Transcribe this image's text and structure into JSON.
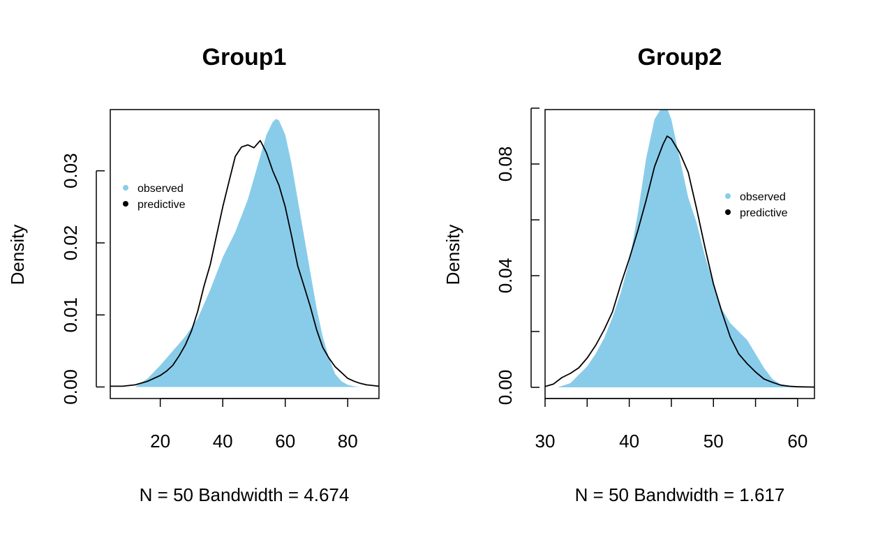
{
  "colors": {
    "observed": "#89CCEA",
    "predictive": "#000000"
  },
  "chart_data": [
    {
      "type": "area",
      "title": "Group1",
      "ylabel": "Density",
      "xlabel": "N = 50   Bandwidth = 4.674",
      "xlim": [
        4,
        90
      ],
      "ylim": [
        -0.0016,
        0.0385
      ],
      "xticks": [
        20,
        40,
        60,
        80
      ],
      "yticks": [
        0.0,
        0.01,
        0.02,
        0.03
      ],
      "ytick_labels": [
        "0.00",
        "0.01",
        "0.02",
        "0.03"
      ],
      "ytick_minor": [],
      "legend": {
        "position": "top-left",
        "entries": [
          "observed",
          "predictive"
        ]
      },
      "series": [
        {
          "name": "observed",
          "style": "filled",
          "x": [
            12,
            16,
            20,
            24,
            28,
            32,
            36,
            40,
            44,
            48,
            52,
            54,
            56,
            57,
            58,
            60,
            62,
            64,
            66,
            68,
            70,
            72,
            74,
            76,
            78,
            80,
            82,
            84,
            86.5
          ],
          "y": [
            0.0,
            0.0012,
            0.003,
            0.005,
            0.007,
            0.0095,
            0.0135,
            0.018,
            0.0215,
            0.026,
            0.032,
            0.035,
            0.0368,
            0.0372,
            0.037,
            0.035,
            0.031,
            0.026,
            0.021,
            0.016,
            0.011,
            0.007,
            0.004,
            0.0018,
            0.0008,
            0.0003,
            0.0001,
            0.0,
            0.0
          ]
        },
        {
          "name": "predictive",
          "style": "line",
          "x": [
            4,
            8,
            12,
            16,
            20,
            22,
            24,
            26,
            28,
            30,
            32,
            34,
            36,
            38,
            40,
            42,
            44,
            46,
            48,
            50,
            52,
            54,
            56,
            58,
            60,
            62,
            64,
            66,
            68,
            70,
            72,
            74,
            76,
            78,
            80,
            82,
            84,
            86,
            88,
            90
          ],
          "y": [
            0.0001,
            0.0001,
            0.0003,
            0.0008,
            0.0016,
            0.0022,
            0.003,
            0.0043,
            0.0058,
            0.0078,
            0.0105,
            0.014,
            0.017,
            0.021,
            0.025,
            0.0285,
            0.032,
            0.0333,
            0.0336,
            0.0332,
            0.0342,
            0.0325,
            0.03,
            0.028,
            0.025,
            0.021,
            0.0168,
            0.014,
            0.0112,
            0.008,
            0.0055,
            0.004,
            0.0028,
            0.002,
            0.0012,
            0.0008,
            0.0005,
            0.0003,
            0.0002,
            0.0001
          ]
        }
      ]
    },
    {
      "type": "area",
      "title": "Group2",
      "ylabel": "Density",
      "xlabel": "N = 50   Bandwidth = 1.617",
      "xlim": [
        30,
        62
      ],
      "ylim": [
        -0.004,
        0.0995
      ],
      "xticks": [
        30,
        35,
        40,
        45,
        50,
        55,
        60
      ],
      "xtick_labels": [
        "30",
        "",
        "40",
        "",
        "50",
        "",
        "60"
      ],
      "yticks": [
        0.0,
        0.02,
        0.04,
        0.06,
        0.08,
        0.1
      ],
      "ytick_labels": [
        "0.00",
        "",
        "0.04",
        "",
        "0.08",
        ""
      ],
      "legend": {
        "position": "top-right",
        "entries": [
          "observed",
          "predictive"
        ]
      },
      "series": [
        {
          "name": "observed",
          "style": "filled",
          "x": [
            31.5,
            33,
            35,
            36,
            37,
            38,
            39,
            40,
            41,
            42,
            43,
            44,
            44.5,
            45,
            46,
            47,
            48,
            49,
            50,
            51,
            52,
            53,
            54,
            55,
            56,
            57,
            58,
            59,
            60
          ],
          "y": [
            0.0,
            0.0015,
            0.0075,
            0.012,
            0.0175,
            0.025,
            0.034,
            0.045,
            0.062,
            0.082,
            0.096,
            0.101,
            0.1,
            0.096,
            0.082,
            0.068,
            0.059,
            0.047,
            0.037,
            0.028,
            0.023,
            0.02,
            0.017,
            0.012,
            0.007,
            0.003,
            0.001,
            0.0003,
            0.0
          ]
        },
        {
          "name": "predictive",
          "style": "line",
          "x": [
            30,
            31,
            32,
            33,
            34,
            35,
            36,
            37,
            38,
            39,
            40,
            41,
            42,
            43,
            44,
            44.5,
            45,
            46,
            47,
            48,
            49,
            50,
            51,
            52,
            53,
            54,
            55,
            56,
            57,
            58,
            59,
            60,
            62
          ],
          "y": [
            0.0003,
            0.0012,
            0.0035,
            0.005,
            0.007,
            0.0105,
            0.015,
            0.0205,
            0.027,
            0.037,
            0.046,
            0.056,
            0.067,
            0.079,
            0.087,
            0.09,
            0.089,
            0.084,
            0.077,
            0.064,
            0.05,
            0.037,
            0.027,
            0.018,
            0.012,
            0.0085,
            0.0055,
            0.003,
            0.0018,
            0.0008,
            0.0004,
            0.0002,
            0.0001
          ]
        }
      ]
    }
  ]
}
